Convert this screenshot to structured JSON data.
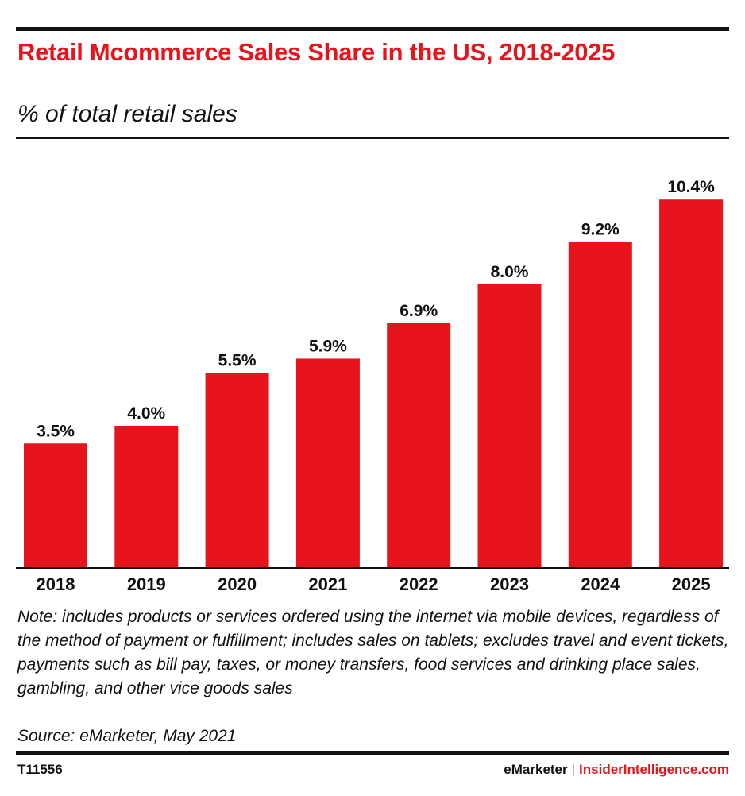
{
  "header": {
    "title": "Retail Mcommerce Sales Share in the US, 2018-2025",
    "subtitle": "% of total retail sales"
  },
  "chart_data": {
    "type": "bar",
    "title": "Retail Mcommerce Sales Share in the US, 2018-2025",
    "subtitle": "% of total retail sales",
    "categories": [
      "2018",
      "2019",
      "2020",
      "2021",
      "2022",
      "2023",
      "2024",
      "2025"
    ],
    "values": [
      3.5,
      4.0,
      5.5,
      5.9,
      6.9,
      8.0,
      9.2,
      10.4
    ],
    "value_labels": [
      "3.5%",
      "4.0%",
      "5.5%",
      "5.9%",
      "6.9%",
      "8.0%",
      "9.2%",
      "10.4%"
    ],
    "xlabel": "",
    "ylabel": "",
    "ylim": [
      0,
      12
    ],
    "grid": false,
    "bar_color": "#e8141c"
  },
  "footer": {
    "note": "Note: includes products or services ordered using the internet via mobile devices, regardless of the method of payment or fulfillment; includes sales on tablets; excludes travel and event tickets, payments such as bill pay, taxes, or money transfers, food services and drinking place sales, gambling, and other vice goods sales",
    "source": "Source: eMarketer, May 2021",
    "chart_id": "T11556",
    "brand_primary": "eMarketer",
    "brand_separator": "|",
    "brand_secondary": "InsiderIntelligence.com"
  },
  "colors": {
    "accent": "#e8141c",
    "text": "#111111"
  }
}
